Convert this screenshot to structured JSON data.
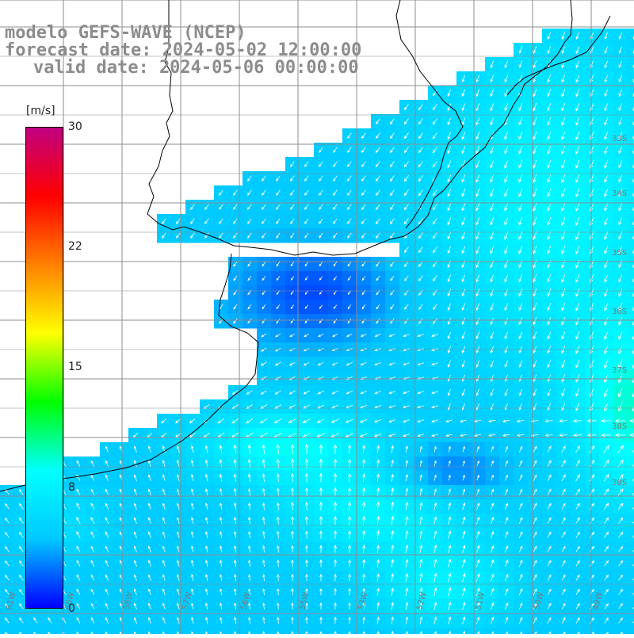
{
  "title": {
    "line1": "modelo GEFS-WAVE (NCEP)",
    "line2": "forecast date: 2024-05-02 12:00:00",
    "line3": "valid date: 2024-05-06 00:00:00"
  },
  "colorbar": {
    "unit": "[m/s]",
    "ticks": [
      "30",
      "22",
      "15",
      "8",
      "0"
    ],
    "tick_values": [
      30,
      22,
      15,
      8,
      0
    ],
    "min": 0,
    "max": 30,
    "colors": [
      "#0000ff",
      "#00c8ff",
      "#00ffff",
      "#00ff00",
      "#ffff00",
      "#ff8000",
      "#ff0000",
      "#c00080"
    ]
  },
  "lon_labels": [
    "61W",
    "60W",
    "58W",
    "57W",
    "56W",
    "55W",
    "53W",
    "52W",
    "51W",
    "50W",
    "49W"
  ],
  "lat_labels": [
    "33S",
    "34S",
    "35S",
    "36S",
    "37S",
    "38S",
    "38S"
  ],
  "map_colors": {
    "land": "#ffffff",
    "grid": "#8c8c8c",
    "coast": "#000000",
    "arrow": "#ffffff",
    "low_wind": "#0a3cf0",
    "mid_wind": "#00d2ff",
    "high_wind": "#22e650"
  }
}
